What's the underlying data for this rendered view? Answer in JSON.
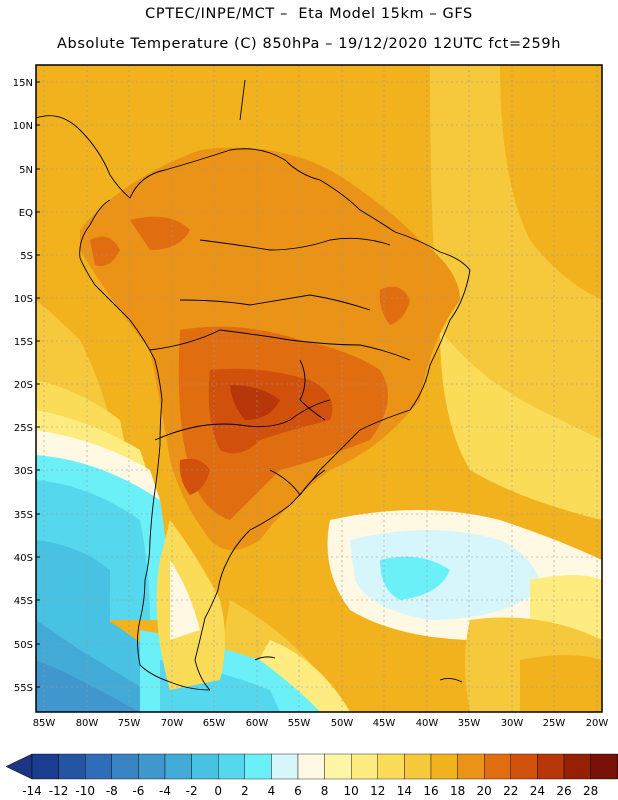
{
  "title_line1": "CPTEC/INPE/MCT –  Eta Model 15km – GFS",
  "title_line2": "Absolute Temperature (C) 850hPa – 19/12/2020 12UTC fct=259h",
  "lat_labels": [
    "15N",
    "10N",
    "5N",
    "EQ",
    "5S",
    "10S",
    "15S",
    "20S",
    "25S",
    "30S",
    "35S",
    "40S",
    "45S",
    "50S",
    "55S"
  ],
  "lon_labels": [
    "85W",
    "80W",
    "75W",
    "70W",
    "65W",
    "60W",
    "55W",
    "50W",
    "45W",
    "40W",
    "35W",
    "30W",
    "25W",
    "20W"
  ],
  "colorbar": {
    "labels": [
      "-14",
      "-12",
      "-10",
      "-8",
      "-6",
      "-4",
      "-2",
      "0",
      "2",
      "4",
      "6",
      "8",
      "10",
      "12",
      "14",
      "16",
      "18",
      "20",
      "22",
      "24",
      "26",
      "28"
    ],
    "colors": [
      "#1a3d8f",
      "#2455a4",
      "#2f6db8",
      "#3a84c4",
      "#3f97cd",
      "#42aad7",
      "#48c2e2",
      "#55d8ed",
      "#6cf0f8",
      "#d6f6fb",
      "#fff8e2",
      "#fff5a6",
      "#feec80",
      "#fbdc59",
      "#f6c83c",
      "#f2b21d",
      "#eb9317",
      "#e06e10",
      "#d1500c",
      "#b7360a",
      "#952006",
      "#781209"
    ],
    "under_color": "#1d3584",
    "over_color": "#7a0a2a"
  }
}
